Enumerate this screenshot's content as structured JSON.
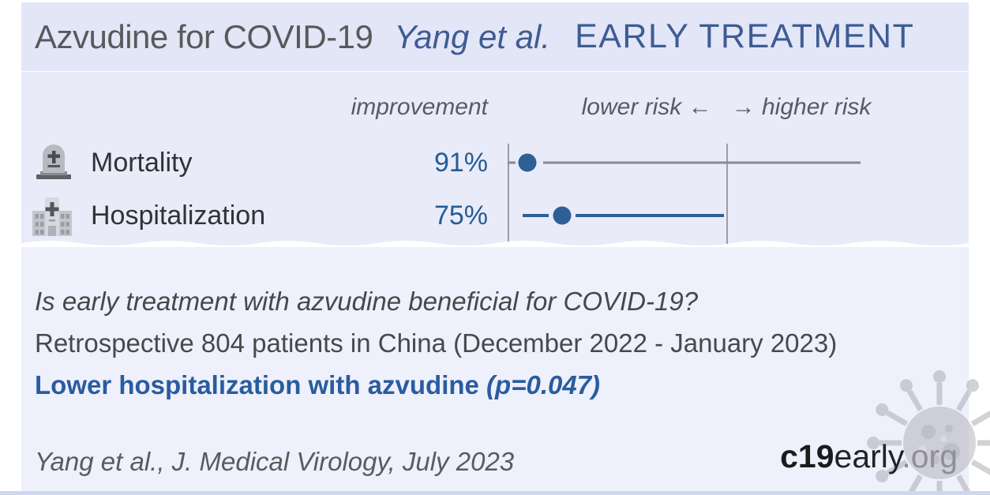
{
  "header": {
    "title": "Azvudine for COVID-19",
    "authors": "Yang et al.",
    "stage": "EARLY TREATMENT"
  },
  "chart": {
    "columns": {
      "improvement": "improvement",
      "risk_axis": "lower risk ←   → higher risk"
    },
    "rows": [
      {
        "icon": "tombstone-icon",
        "label": "Mortality",
        "improvement": "91%"
      },
      {
        "icon": "hospital-icon",
        "label": "Hospitalization",
        "improvement": "75%"
      }
    ]
  },
  "chart_data": {
    "type": "forest",
    "title": "Azvudine for COVID-19 — Yang et al. — EARLY TREATMENT",
    "column_headers": [
      "improvement",
      "lower risk ← → higher risk"
    ],
    "scale": "log",
    "reference_line": 1.0,
    "rows": [
      {
        "outcome": "Mortality",
        "improvement_pct": 91,
        "relative_risk_estimated": 0.09,
        "ci_crosses_reference": true,
        "significant": false,
        "line_color": "gray"
      },
      {
        "outcome": "Hospitalization",
        "improvement_pct": 75,
        "relative_risk_estimated": 0.25,
        "ci_crosses_reference": false,
        "significant": true,
        "line_color": "blue"
      }
    ],
    "plot": {
      "reference_x": 0.565,
      "rows": [
        {
          "color": "gray",
          "dot": 0.051,
          "segments": [
            [
              0.0,
              0.02
            ],
            [
              0.092,
              0.912
            ]
          ]
        },
        {
          "color": "blue",
          "dot": 0.141,
          "segments": [
            [
              0.039,
              0.107
            ],
            [
              0.176,
              0.559
            ]
          ]
        }
      ]
    }
  },
  "summary": {
    "question": "Is early treatment with azvudine beneficial for COVID-19?",
    "study": "Retrospective 804 patients in China (December 2022 - January 2023)",
    "finding": "Lower hospitalization with azvudine ",
    "finding_p": "(p=0.047)"
  },
  "footer": {
    "citation": "Yang et al., J. Medical Virology, July 2023",
    "site": {
      "prefix": "c19",
      "mid": "early",
      "suffix": ".org"
    }
  },
  "colors": {
    "accent_blue": "#2d6096",
    "heading_blue": "#3e5c93",
    "finding_blue": "#2a5c9e",
    "ci_gray": "#8a8a90",
    "axis_gray": "#9c9ca4",
    "header_bg": "#e3e6f7",
    "chart_bg": "#e9ebf9",
    "lower_bg": "#eef0fc",
    "bottom_strip": "#cfd7ef"
  }
}
